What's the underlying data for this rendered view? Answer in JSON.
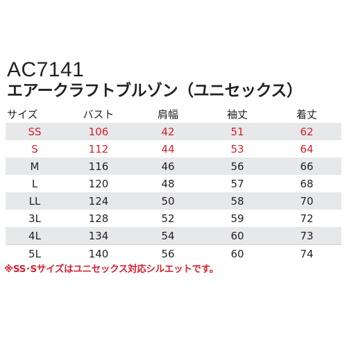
{
  "product": {
    "code": "AC7141",
    "name": "エアークラフトブルゾン（ユニセックス）"
  },
  "size_table": {
    "headers": [
      "サイズ",
      "バスト",
      "肩幅",
      "袖丈",
      "着丈"
    ],
    "rows": [
      [
        "SS",
        "106",
        "42",
        "51",
        "62"
      ],
      [
        "S",
        "112",
        "44",
        "53",
        "64"
      ],
      [
        "M",
        "116",
        "46",
        "56",
        "66"
      ],
      [
        "L",
        "120",
        "48",
        "57",
        "68"
      ],
      [
        "LL",
        "124",
        "50",
        "58",
        "70"
      ],
      [
        "3L",
        "128",
        "52",
        "59",
        "72"
      ],
      [
        "4L",
        "134",
        "54",
        "60",
        "73"
      ],
      [
        "5L",
        "140",
        "56",
        "60",
        "74"
      ]
    ]
  },
  "note": "※SS･Sサイズはユニセックス対応シルエットです。",
  "colors": {
    "accent_red": "#d6212f",
    "row_shade": "#e7e8e9",
    "text": "#231f20"
  }
}
